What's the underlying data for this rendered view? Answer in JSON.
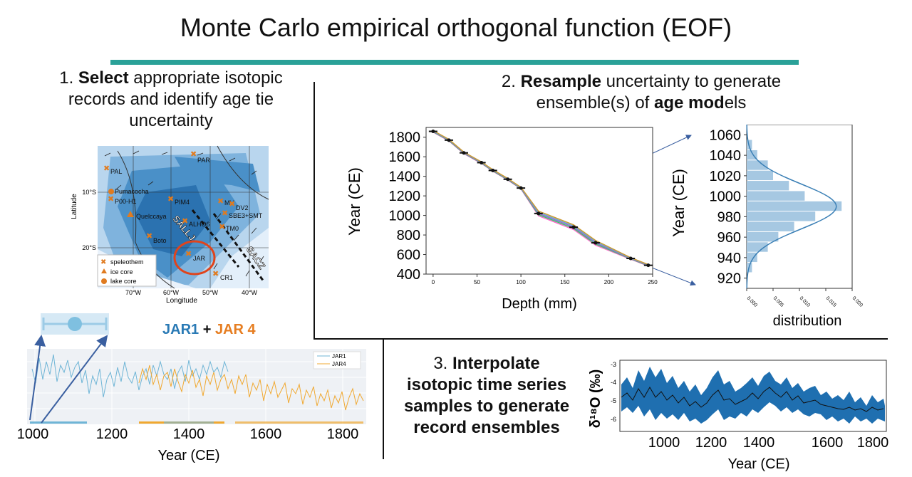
{
  "title": "Monte Carlo empirical orthogonal function (EOF)",
  "colors": {
    "accent": "#2aa198",
    "map_blue": "#2b7bba",
    "jar1": "#6fb5d6",
    "jar4": "#f0a830",
    "interp": "#1f6fb0"
  },
  "step1": {
    "num": "1.",
    "bold": "Select",
    "rest1": " appropriate isotopic",
    "line2": "records and identify age tie",
    "line3": "uncertainty",
    "map": {
      "ylabel": "Latitude",
      "xlabel": "Longitude",
      "lat_ticks": [
        "10°S",
        "20°S"
      ],
      "lon_ticks": [
        "70°W",
        "60°W",
        "50°W",
        "40°W"
      ],
      "sites": [
        "PAR",
        "PAL",
        "Pumacocha",
        "P00-H1",
        "PIM4",
        "MV",
        "DV2",
        "SBE3+SMT",
        "Quelccaya",
        "ALHO6",
        "TM0",
        "Boto",
        "JAR",
        "CR1"
      ],
      "zones": [
        "SALLJ",
        "SACZ"
      ],
      "legend": [
        "speleothem",
        "ice core",
        "lake core"
      ]
    }
  },
  "jar": {
    "jar1": "JAR1",
    "plus": " + ",
    "jar4": "JAR 4",
    "legend": [
      "JAR1",
      "JAR4"
    ],
    "x_ticks": [
      "1000",
      "1200",
      "1400",
      "1600",
      "1800"
    ],
    "xlabel": "Year (CE)"
  },
  "step2": {
    "num": "2.",
    "bold1": "Resample",
    "rest1": " uncertainty to generate",
    "line2a": "ensemble(s) of ",
    "bold2": "age mod",
    "line2b": "els",
    "main_chart": {
      "ylabel": "Year (CE)",
      "xlabel": "Depth (mm)",
      "y_ticks": [
        "1800",
        "1600",
        "1400",
        "1200",
        "1000",
        "800",
        "600",
        "400"
      ],
      "x_ticks": [
        "0",
        "50",
        "100",
        "150",
        "200",
        "250"
      ]
    },
    "dist_chart": {
      "ylabel": "Year (CE)",
      "xlabel": "distribution",
      "y_ticks": [
        "1060",
        "1040",
        "1020",
        "1000",
        "980",
        "960",
        "940",
        "920"
      ],
      "x_ticks": [
        "0.000",
        "0.005",
        "0.010",
        "0.015",
        "0.020"
      ]
    }
  },
  "step3": {
    "num": "3.",
    "bold": "Interpolate",
    "line2": "isotopic time series",
    "line3": "samples to generate",
    "line4": "record ensembles",
    "chart": {
      "ylabel": "δ¹⁸O (‰)",
      "y_ticks": [
        "-3",
        "-4",
        "-5",
        "-6"
      ],
      "x_ticks": [
        "1000",
        "1200",
        "1400",
        "1600",
        "1800"
      ],
      "xlabel": "Year (CE)"
    }
  },
  "chart_data": [
    {
      "type": "line",
      "title": "",
      "xlabel": "Depth (mm)",
      "ylabel": "Year (CE)",
      "x": [
        0,
        18,
        35,
        55,
        68,
        85,
        100,
        120,
        160,
        185,
        225,
        245
      ],
      "y": [
        1860,
        1770,
        1640,
        1540,
        1460,
        1370,
        1280,
        1020,
        880,
        720,
        560,
        490
      ],
      "xlim": [
        -8,
        250
      ],
      "ylim": [
        400,
        1900
      ]
    },
    {
      "type": "bar",
      "title": "",
      "xlabel": "distribution",
      "ylabel": "Year (CE)",
      "categories": [
        930,
        940,
        950,
        960,
        970,
        980,
        990,
        1000,
        1010,
        1020,
        1030,
        1040,
        1050
      ],
      "values": [
        0.001,
        0.002,
        0.004,
        0.006,
        0.009,
        0.013,
        0.018,
        0.011,
        0.008,
        0.005,
        0.004,
        0.002,
        0.001
      ],
      "xlim": [
        0,
        0.02
      ],
      "ylim": [
        910,
        1070
      ]
    }
  ]
}
